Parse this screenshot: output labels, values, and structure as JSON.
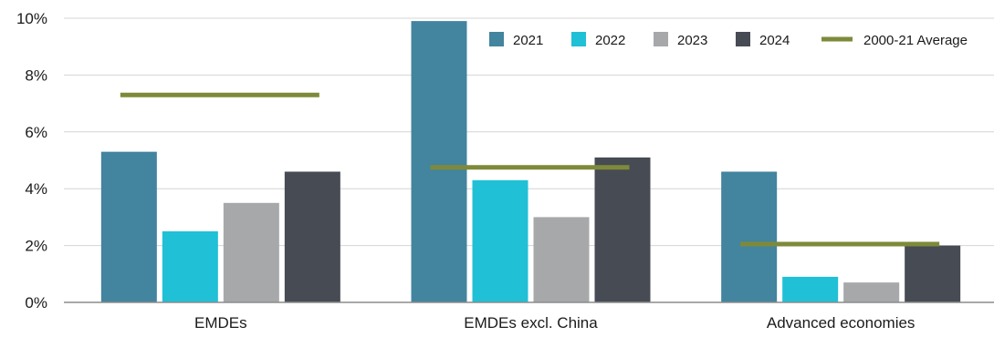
{
  "chart_data": {
    "type": "bar",
    "categories": [
      "EMDEs",
      "EMDEs excl. China",
      "Advanced economies"
    ],
    "series": [
      {
        "name": "2021",
        "color": "#43849f",
        "values": [
          5.3,
          9.9,
          4.6
        ]
      },
      {
        "name": "2022",
        "color": "#20c0d6",
        "values": [
          2.5,
          4.3,
          0.9
        ]
      },
      {
        "name": "2023",
        "color": "#a6a8aa",
        "values": [
          3.5,
          3.0,
          0.7
        ]
      },
      {
        "name": "2024",
        "color": "#474b53",
        "values": [
          4.6,
          5.1,
          2.0
        ]
      }
    ],
    "reference_line": {
      "name": "2000-21 Average",
      "color": "#7e8a3a",
      "values": [
        7.3,
        4.75,
        2.05
      ]
    },
    "ylim": [
      0,
      10
    ],
    "yticks": [
      {
        "value": 0,
        "label": "0%"
      },
      {
        "value": 2,
        "label": "2%"
      },
      {
        "value": 4,
        "label": "4%"
      },
      {
        "value": 6,
        "label": "6%"
      },
      {
        "value": 8,
        "label": "8%"
      },
      {
        "value": 10,
        "label": "10%"
      }
    ],
    "grid": true,
    "legend_position": "top-right",
    "title": "",
    "xlabel": "",
    "ylabel": ""
  }
}
